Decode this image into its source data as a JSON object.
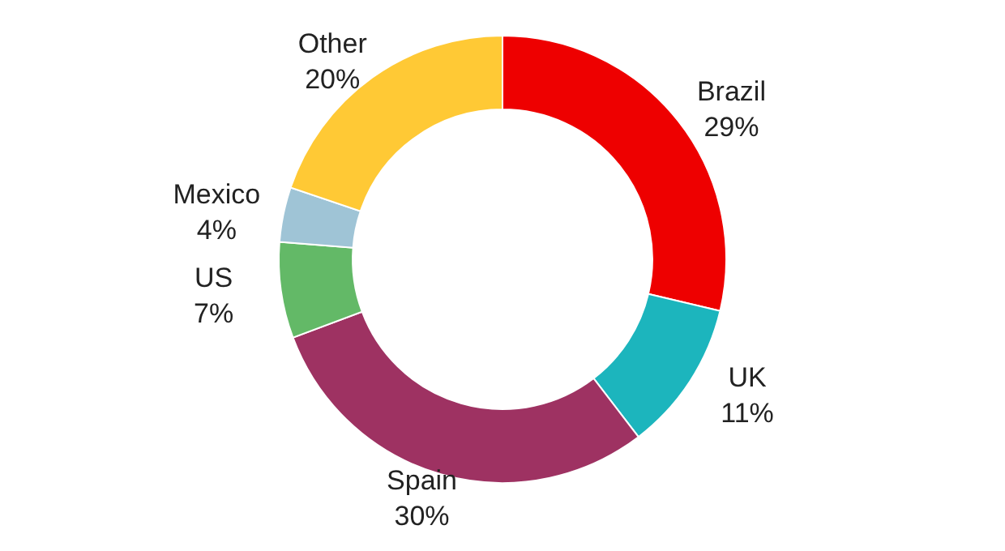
{
  "chart_data": {
    "type": "donut",
    "categories": [
      "Brazil",
      "UK",
      "Spain",
      "US",
      "Mexico",
      "Other"
    ],
    "values": [
      29,
      11,
      30,
      7,
      4,
      20
    ],
    "value_labels": [
      "29%",
      "11%",
      "30%",
      "7%",
      "4%",
      "20%"
    ],
    "colors": [
      "#ee0000",
      "#1cb5bd",
      "#9e3262",
      "#63b967",
      "#9fc4d6",
      "#ffc935"
    ]
  }
}
